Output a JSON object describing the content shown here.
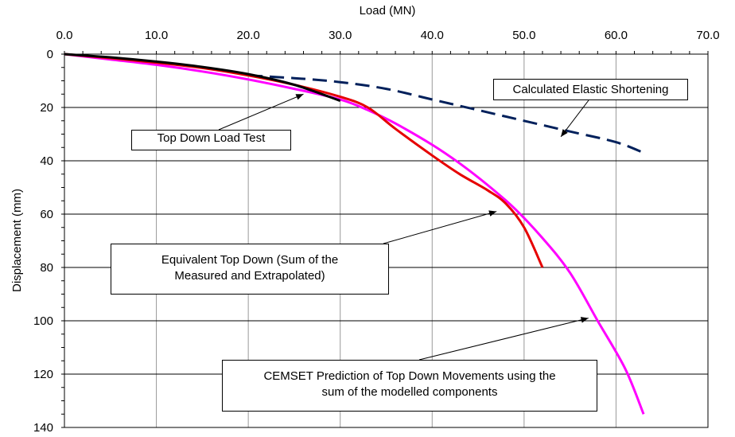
{
  "chart_data": {
    "type": "line",
    "title": "",
    "xlabel": "Load (MN)",
    "ylabel": "Displacement (mm)",
    "x_axis_position": "top",
    "y_axis_inverted": true,
    "xlim": [
      0,
      70
    ],
    "ylim": [
      0,
      140
    ],
    "x_ticks": [
      "0.0",
      "10.0",
      "20.0",
      "30.0",
      "40.0",
      "50.0",
      "60.0",
      "70.0"
    ],
    "y_ticks": [
      "0",
      "20",
      "40",
      "60",
      "80",
      "100",
      "120",
      "140"
    ],
    "grid": "vertical and horizontal at major ticks",
    "legend": "none",
    "series": [
      {
        "color": "#000000",
        "style": "solid",
        "points": [
          [
            0,
            0
          ],
          [
            5,
            1.2
          ],
          [
            10,
            2.8
          ],
          [
            15,
            4.8
          ],
          [
            20,
            7.5
          ],
          [
            25,
            11.5
          ],
          [
            30,
            17.5
          ]
        ]
      },
      {
        "color": "#e60000",
        "style": "solid",
        "points": [
          [
            0,
            0
          ],
          [
            5,
            1.5
          ],
          [
            10,
            3.2
          ],
          [
            15,
            5.2
          ],
          [
            20,
            8
          ],
          [
            25,
            11.5
          ],
          [
            30,
            16
          ],
          [
            33,
            20
          ],
          [
            36,
            28
          ],
          [
            40,
            38
          ],
          [
            43,
            45
          ],
          [
            46,
            51
          ],
          [
            48,
            56
          ],
          [
            50,
            65
          ],
          [
            52,
            80
          ]
        ]
      },
      {
        "color": "#ff00ff",
        "style": "solid",
        "points": [
          [
            0,
            0
          ],
          [
            5,
            2
          ],
          [
            10,
            4
          ],
          [
            15,
            6.5
          ],
          [
            20,
            9.5
          ],
          [
            25,
            13
          ],
          [
            30,
            17
          ],
          [
            33,
            21
          ],
          [
            36,
            26
          ],
          [
            40,
            34
          ],
          [
            43,
            41
          ],
          [
            46,
            49
          ],
          [
            49,
            58
          ],
          [
            52,
            69
          ],
          [
            55,
            82
          ],
          [
            58,
            100
          ],
          [
            61,
            118
          ],
          [
            63,
            135
          ]
        ]
      },
      {
        "color": "#00205b",
        "style": "dashed",
        "points": [
          [
            20,
            8
          ],
          [
            25,
            9
          ],
          [
            30,
            10.5
          ],
          [
            35,
            13
          ],
          [
            40,
            17
          ],
          [
            45,
            21
          ],
          [
            50,
            25
          ],
          [
            55,
            29
          ],
          [
            60,
            33
          ],
          [
            63,
            37
          ]
        ]
      }
    ],
    "annotations": {
      "top_down": "Top Down Load Test",
      "elastic": "Calculated Elastic Shortening",
      "equivalent_line1": "Equivalent Top Down (Sum of the",
      "equivalent_line2": "Measured and Extrapolated)",
      "cemset_line1": "CEMSET Prediction of Top Down Movements using the",
      "cemset_line2": "sum of the modelled components"
    },
    "annotation_targets": {
      "top_down": [
        26,
        15
      ],
      "elastic": [
        54,
        31
      ],
      "equivalent": [
        47,
        59
      ],
      "cemset": [
        57,
        99
      ]
    }
  }
}
